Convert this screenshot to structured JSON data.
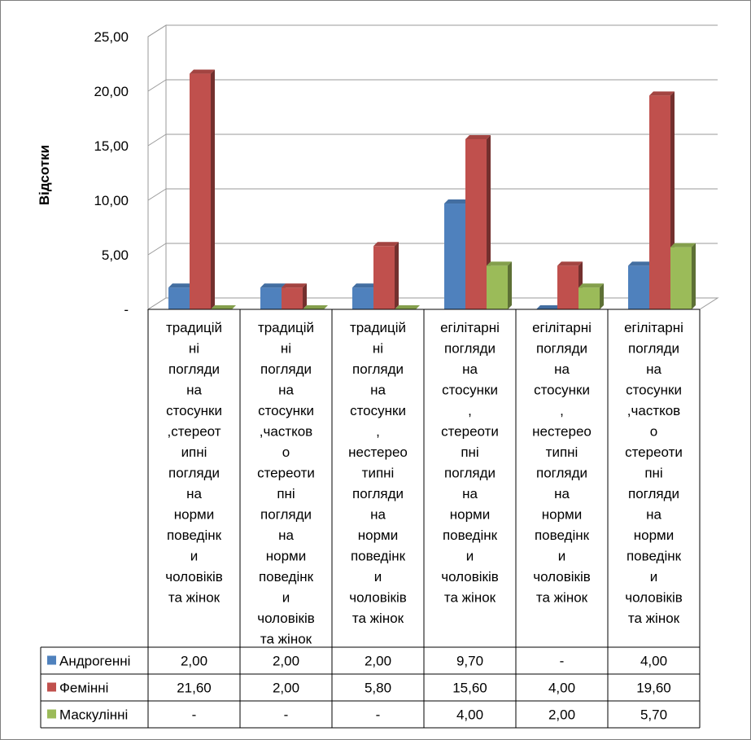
{
  "chart_data": {
    "type": "bar",
    "ylabel": "Відсотки",
    "ylim": [
      0,
      25
    ],
    "yticks": [
      "-",
      "5,00",
      "10,00",
      "15,00",
      "20,00",
      "25,00"
    ],
    "grid": true,
    "legend": "data-table",
    "categories": [
      "традиційні погляди на стосунки,стереотипні погляди на норми поведінки чоловіків та жінок",
      "традиційні погляди на стосунки,частково стереотипні погляди на норми поведінки чоловіків та жінок",
      "традиційні погляди на стосунки, нестереотипні погляди на норми поведінки чоловіків та жінок",
      "егілітарні погляди на стосунки, стереотипні погляди на норми поведінки чоловіків та жінок",
      "егілітарні погляди на стосунки, нестереотипні погляди на норми поведінки чоловіків та жінок",
      "егілітарні погляди на стосунки,частково стереотипні погляди на норми поведінки чоловіків та жінок"
    ],
    "category_lines": [
      [
        "традицій",
        "ні",
        "погляди",
        "на",
        "стосунки",
        ",стереот",
        "ипні",
        "погляди",
        "на",
        "норми",
        "поведінк",
        "и",
        "чоловіків",
        "та жінок"
      ],
      [
        "традицій",
        "ні",
        "погляди",
        "на",
        "стосунки",
        ",частков",
        "о",
        "стереоти",
        "пні",
        "погляди",
        "на",
        "норми",
        "поведінк",
        "и",
        "чоловіків",
        "та жінок"
      ],
      [
        "традицій",
        "ні",
        "погляди",
        "на",
        "стосунки",
        ",",
        "нестерео",
        "типні",
        "погляди",
        "на",
        "норми",
        "поведінк",
        "и",
        "чоловіків",
        "та жінок"
      ],
      [
        "егілітарні",
        "погляди",
        "на",
        "стосунки",
        ",",
        "стереоти",
        "пні",
        "погляди",
        "на",
        "норми",
        "поведінк",
        "и",
        "чоловіків",
        "та жінок"
      ],
      [
        "егілітарні",
        "погляди",
        "на",
        "стосунки",
        ",",
        "нестерео",
        "типні",
        "погляди",
        "на",
        "норми",
        "поведінк",
        "и",
        "чоловіків",
        "та жінок"
      ],
      [
        "егілітарні",
        "погляди",
        "на",
        "стосунки",
        ",частков",
        "о",
        "стереоти",
        "пні",
        "погляди",
        "на",
        "норми",
        "поведінк",
        "и",
        "чоловіків",
        "та жінок"
      ]
    ],
    "series": [
      {
        "name": "Андрогенні",
        "color": "#4f81bd",
        "values": [
          2.0,
          2.0,
          2.0,
          9.7,
          0,
          4.0
        ],
        "labels": [
          "2,00",
          "2,00",
          "2,00",
          "9,70",
          "-",
          "4,00"
        ]
      },
      {
        "name": "Фемінні",
        "color": "#c0504d",
        "values": [
          21.6,
          2.0,
          5.8,
          15.6,
          4.0,
          19.6
        ],
        "labels": [
          "21,60",
          "2,00",
          "5,80",
          "15,60",
          "4,00",
          "19,60"
        ]
      },
      {
        "name": "Маскулінні",
        "color": "#9bbb59",
        "values": [
          0,
          0,
          0,
          4.0,
          2.0,
          5.7
        ],
        "labels": [
          "-",
          "-",
          "-",
          "4,00",
          "2,00",
          "5,70"
        ]
      }
    ]
  }
}
